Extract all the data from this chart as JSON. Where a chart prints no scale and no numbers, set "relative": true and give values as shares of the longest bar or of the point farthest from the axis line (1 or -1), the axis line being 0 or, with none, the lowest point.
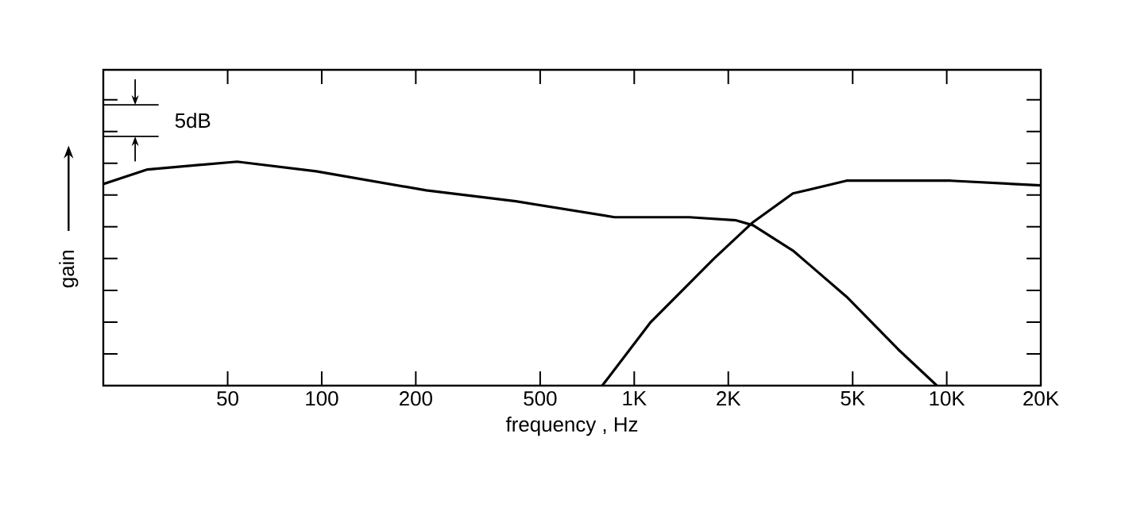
{
  "chart_data": {
    "type": "line",
    "xlabel": "frequency , Hz",
    "ylabel": "gain",
    "relative": true,
    "log": "x",
    "marker": "none",
    "line_style": "solid",
    "xlim": [
      20,
      20000
    ],
    "xticks": [
      50,
      100,
      200,
      500,
      {
        "value": 1000,
        "label": "1K"
      },
      {
        "value": 2000,
        "label": "2K"
      },
      {
        "value": 5000,
        "label": "5K"
      },
      {
        "value": 10000,
        "label": "10K"
      },
      {
        "value": 20000,
        "label": "20K"
      }
    ],
    "annotations": [
      "5dB"
    ],
    "series": [
      {
        "color": "#000000",
        "x": [
          20,
          27.7,
          53.6,
          96,
          216,
          418,
          866,
          1500,
          2120,
          2400,
          3220,
          4780,
          6980,
          9300
        ],
        "values": [
          0.9,
          0.965,
          1.0,
          0.957,
          0.872,
          0.823,
          0.752,
          0.752,
          0.738,
          0.716,
          0.603,
          0.397,
          0.163,
          0
        ]
      },
      {
        "color": "#000000",
        "x": [
          790,
          1130,
          1800,
          2400,
          3220,
          4780,
          10300,
          20000
        ],
        "values": [
          0,
          0.284,
          0.567,
          0.73,
          0.858,
          0.915,
          0.915,
          0.894
        ]
      }
    ]
  }
}
